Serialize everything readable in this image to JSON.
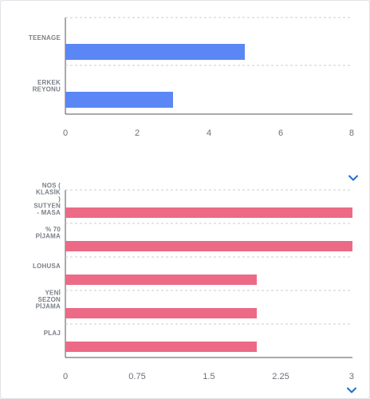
{
  "colors": {
    "chart1": "#5b86f5",
    "chart2": "#ec6a85",
    "chevron": "#1f6fd1"
  },
  "chevrons": [
    "chevron-down-icon",
    "chevron-down-icon"
  ],
  "chart_data": [
    {
      "type": "bar",
      "orientation": "horizontal",
      "categories": [
        "TEENAGE",
        "ERKEK REYONU"
      ],
      "category_lines": [
        [
          "TEENAGE"
        ],
        [
          "ERKEK",
          "REYONU"
        ]
      ],
      "values": [
        5,
        3
      ],
      "xlim": [
        0,
        8
      ],
      "xticks": [
        "0",
        "2",
        "4",
        "6",
        "8"
      ],
      "grid": true
    },
    {
      "type": "bar",
      "orientation": "horizontal",
      "categories": [
        "NOS ( KLASİK ) SUTYEN - MASA",
        "% 70 PİJAMA",
        "LOHUSA",
        "YENİ SEZON PİJAMA",
        "PLAJ"
      ],
      "category_lines": [
        [
          "NOS (",
          "KLASİK",
          ")",
          "SUTYEN",
          "- MASA"
        ],
        [
          "% 70",
          "PİJAMA"
        ],
        [
          "LOHUSA"
        ],
        [
          "YENİ",
          "SEZON",
          "PİJAMA"
        ],
        [
          "PLAJ"
        ]
      ],
      "values": [
        3,
        3,
        2,
        2,
        2
      ],
      "xlim": [
        0,
        3
      ],
      "xticks": [
        "0",
        "0.75",
        "1.5",
        "2.25",
        "3"
      ],
      "grid": true
    }
  ]
}
